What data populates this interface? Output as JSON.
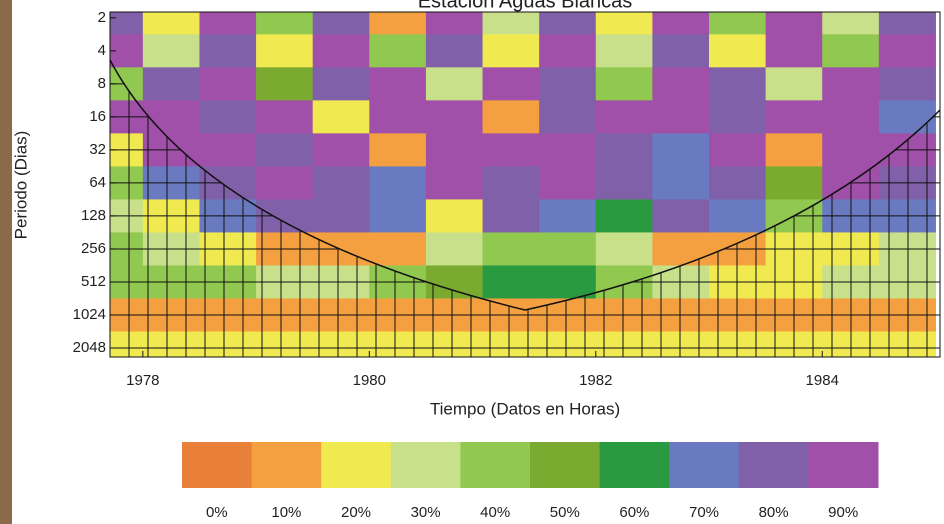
{
  "chart_data": {
    "type": "heatmap",
    "title": "Estación Aguas Blancas",
    "x_label": "Tiempo (Datos en Horas)",
    "y_label": "Periodo (Dias)",
    "x": [
      1977.75,
      1978.25,
      1978.75,
      1979.25,
      1979.75,
      1980.25,
      1980.75,
      1981.25,
      1981.75,
      1982.25,
      1982.75,
      1983.25,
      1983.75,
      1984.25,
      1984.75
    ],
    "y": [
      2,
      4,
      8,
      16,
      32,
      64,
      128,
      256,
      512,
      1024,
      2048
    ],
    "z": [
      [
        80,
        20,
        90,
        40,
        80,
        10,
        90,
        30,
        80,
        20,
        90,
        40,
        90,
        30,
        80
      ],
      [
        90,
        30,
        80,
        20,
        90,
        40,
        80,
        20,
        90,
        30,
        80,
        20,
        90,
        40,
        90
      ],
      [
        40,
        80,
        90,
        50,
        80,
        90,
        30,
        90,
        80,
        40,
        90,
        80,
        30,
        90,
        80
      ],
      [
        90,
        90,
        80,
        90,
        20,
        90,
        90,
        10,
        80,
        90,
        90,
        80,
        90,
        90,
        70
      ],
      [
        20,
        90,
        90,
        80,
        90,
        10,
        90,
        90,
        90,
        80,
        70,
        90,
        10,
        90,
        90
      ],
      [
        40,
        70,
        80,
        90,
        80,
        70,
        90,
        80,
        90,
        80,
        70,
        80,
        50,
        90,
        80
      ],
      [
        30,
        20,
        70,
        80,
        80,
        70,
        20,
        80,
        70,
        60,
        80,
        70,
        40,
        70,
        70
      ],
      [
        40,
        30,
        20,
        10,
        10,
        10,
        30,
        40,
        40,
        30,
        10,
        10,
        20,
        20,
        30
      ],
      [
        40,
        40,
        40,
        30,
        30,
        40,
        50,
        60,
        60,
        40,
        30,
        20,
        20,
        30,
        30
      ],
      [
        10,
        10,
        10,
        10,
        10,
        10,
        10,
        10,
        10,
        10,
        10,
        10,
        10,
        10,
        10
      ],
      [
        20,
        20,
        20,
        20,
        20,
        20,
        20,
        20,
        20,
        20,
        20,
        20,
        20,
        20,
        20
      ]
    ],
    "xlim": [
      1977.71,
      1985.04
    ],
    "xticks": [
      1978,
      1980,
      1982,
      1984
    ],
    "ylim": [
      1.77,
      2474
    ],
    "y_scale": "log2",
    "y_inverted": true,
    "yticks": [
      2,
      4,
      8,
      16,
      32,
      64,
      128,
      256,
      512,
      1024,
      2048
    ],
    "colorbar": {
      "levels": [
        0,
        10,
        20,
        30,
        40,
        50,
        60,
        70,
        80,
        90
      ],
      "labels": [
        "0%",
        "10%",
        "20%",
        "30%",
        "40%",
        "50%",
        "60%",
        "70%",
        "80%",
        "90%"
      ],
      "colors": [
        "#e8803a",
        "#f5a040",
        "#f0ea50",
        "#c8e08a",
        "#90c850",
        "#7aaa30",
        "#2a9a40",
        "#6a7ac0",
        "#8060a8",
        "#a050a8"
      ]
    }
  }
}
